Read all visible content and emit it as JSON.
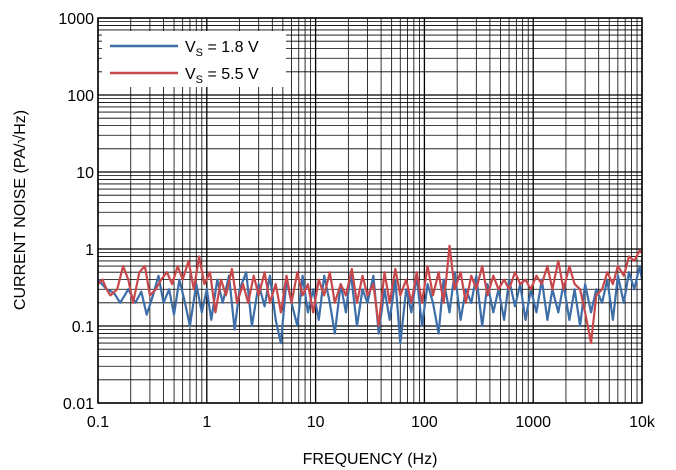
{
  "chart_data": {
    "type": "line",
    "title": "",
    "xlabel": "FREQUENCY (Hz)",
    "ylabel": "CURRENT NOISE (PA/√Hz)",
    "x_scale": "log",
    "y_scale": "log",
    "xlim": [
      0.1,
      10000
    ],
    "ylim": [
      0.01,
      1000
    ],
    "x_ticks": [
      "0.1",
      "1",
      "10",
      "100",
      "1000",
      "10k"
    ],
    "y_ticks": [
      "0.01",
      "0.1",
      "1",
      "10",
      "100",
      "1000"
    ],
    "grid": true,
    "legend_position": "top-left",
    "series": [
      {
        "name": "VS = 1.8 V",
        "name_main": "V",
        "name_sub": "S",
        "name_rest": " = 1.8 V",
        "color": "#3d6ea8",
        "x": [
          0.1,
          0.12,
          0.14,
          0.16,
          0.19,
          0.22,
          0.25,
          0.28,
          0.32,
          0.36,
          0.4,
          0.45,
          0.5,
          0.56,
          0.63,
          0.7,
          0.8,
          0.9,
          1.0,
          1.1,
          1.25,
          1.4,
          1.6,
          1.8,
          2.0,
          2.3,
          2.6,
          3.0,
          3.4,
          3.8,
          4.3,
          4.8,
          5.4,
          6.0,
          6.8,
          7.6,
          8.5,
          9.5,
          10.7,
          12,
          13.5,
          15,
          17,
          19,
          21,
          24,
          27,
          30,
          34,
          38,
          43,
          48,
          54,
          60,
          68,
          76,
          85,
          95,
          107,
          120,
          135,
          150,
          170,
          190,
          215,
          240,
          270,
          300,
          340,
          380,
          430,
          480,
          540,
          600,
          680,
          760,
          850,
          950,
          1070,
          1200,
          1350,
          1500,
          1700,
          1900,
          2150,
          2400,
          2700,
          3000,
          3400,
          3800,
          4300,
          4800,
          5400,
          6000,
          6800,
          7600,
          8500,
          9500,
          10000
        ],
        "values": [
          0.4,
          0.3,
          0.27,
          0.2,
          0.3,
          0.2,
          0.28,
          0.14,
          0.25,
          0.45,
          0.2,
          0.3,
          0.14,
          0.4,
          0.2,
          0.1,
          0.35,
          0.15,
          0.3,
          0.12,
          0.4,
          0.2,
          0.45,
          0.09,
          0.3,
          0.5,
          0.1,
          0.35,
          0.18,
          0.45,
          0.12,
          0.06,
          0.4,
          0.2,
          0.1,
          0.45,
          0.15,
          0.3,
          0.12,
          0.45,
          0.2,
          0.08,
          0.35,
          0.15,
          0.5,
          0.1,
          0.3,
          0.2,
          0.45,
          0.08,
          0.3,
          0.12,
          0.4,
          0.06,
          0.3,
          0.15,
          0.45,
          0.1,
          0.35,
          0.2,
          0.08,
          0.4,
          0.15,
          0.5,
          0.12,
          0.3,
          0.2,
          0.45,
          0.1,
          0.35,
          0.15,
          0.3,
          0.12,
          0.4,
          0.18,
          0.35,
          0.12,
          0.3,
          0.15,
          0.4,
          0.12,
          0.3,
          0.15,
          0.35,
          0.12,
          0.3,
          0.1,
          0.35,
          0.15,
          0.3,
          0.2,
          0.4,
          0.12,
          0.45,
          0.2,
          0.5,
          0.3,
          0.6,
          0.4
        ]
      },
      {
        "name": "VS = 5.5 V",
        "name_main": "V",
        "name_sub": "S",
        "name_rest": " = 5.5 V",
        "color": "#c8474b",
        "x": [
          0.1,
          0.11,
          0.12,
          0.13,
          0.15,
          0.17,
          0.19,
          0.21,
          0.24,
          0.27,
          0.3,
          0.34,
          0.38,
          0.43,
          0.48,
          0.54,
          0.6,
          0.68,
          0.76,
          0.85,
          0.95,
          1.07,
          1.2,
          1.35,
          1.5,
          1.7,
          1.9,
          2.15,
          2.4,
          2.7,
          3.0,
          3.4,
          3.8,
          4.3,
          4.8,
          5.4,
          6.0,
          6.8,
          7.6,
          8.5,
          9.5,
          10.7,
          12,
          13.5,
          15,
          17,
          19,
          21.5,
          24,
          27,
          30,
          34,
          38,
          43,
          48,
          54,
          60,
          68,
          76,
          85,
          95,
          107,
          120,
          135,
          150,
          160,
          170,
          190,
          215,
          240,
          270,
          300,
          340,
          380,
          430,
          480,
          540,
          600,
          680,
          760,
          850,
          950,
          1070,
          1200,
          1350,
          1500,
          1700,
          1900,
          2150,
          2400,
          2700,
          3000,
          3400,
          3800,
          4300,
          4800,
          5400,
          6000,
          6800,
          7600,
          8500,
          9500,
          10000
        ],
        "values": [
          0.35,
          0.4,
          0.3,
          0.25,
          0.3,
          0.6,
          0.4,
          0.2,
          0.5,
          0.6,
          0.25,
          0.3,
          0.4,
          0.5,
          0.35,
          0.6,
          0.4,
          0.7,
          0.3,
          0.8,
          0.35,
          0.5,
          0.15,
          0.4,
          0.25,
          0.55,
          0.2,
          0.35,
          0.2,
          0.45,
          0.25,
          0.5,
          0.2,
          0.35,
          0.15,
          0.45,
          0.2,
          0.5,
          0.25,
          0.35,
          0.15,
          0.4,
          0.25,
          0.5,
          0.2,
          0.35,
          0.25,
          0.55,
          0.2,
          0.45,
          0.25,
          0.35,
          0.1,
          0.5,
          0.2,
          0.55,
          0.25,
          0.4,
          0.2,
          0.5,
          0.2,
          0.6,
          0.25,
          0.5,
          0.2,
          0.45,
          1.1,
          0.3,
          0.5,
          0.2,
          0.45,
          0.3,
          0.6,
          0.25,
          0.45,
          0.3,
          0.4,
          0.3,
          0.5,
          0.35,
          0.4,
          0.3,
          0.45,
          0.35,
          0.6,
          0.3,
          0.7,
          0.3,
          0.6,
          0.35,
          0.3,
          0.15,
          0.06,
          0.25,
          0.3,
          0.5,
          0.35,
          0.6,
          0.45,
          0.8,
          0.7,
          0.95,
          0.9
        ]
      }
    ]
  }
}
